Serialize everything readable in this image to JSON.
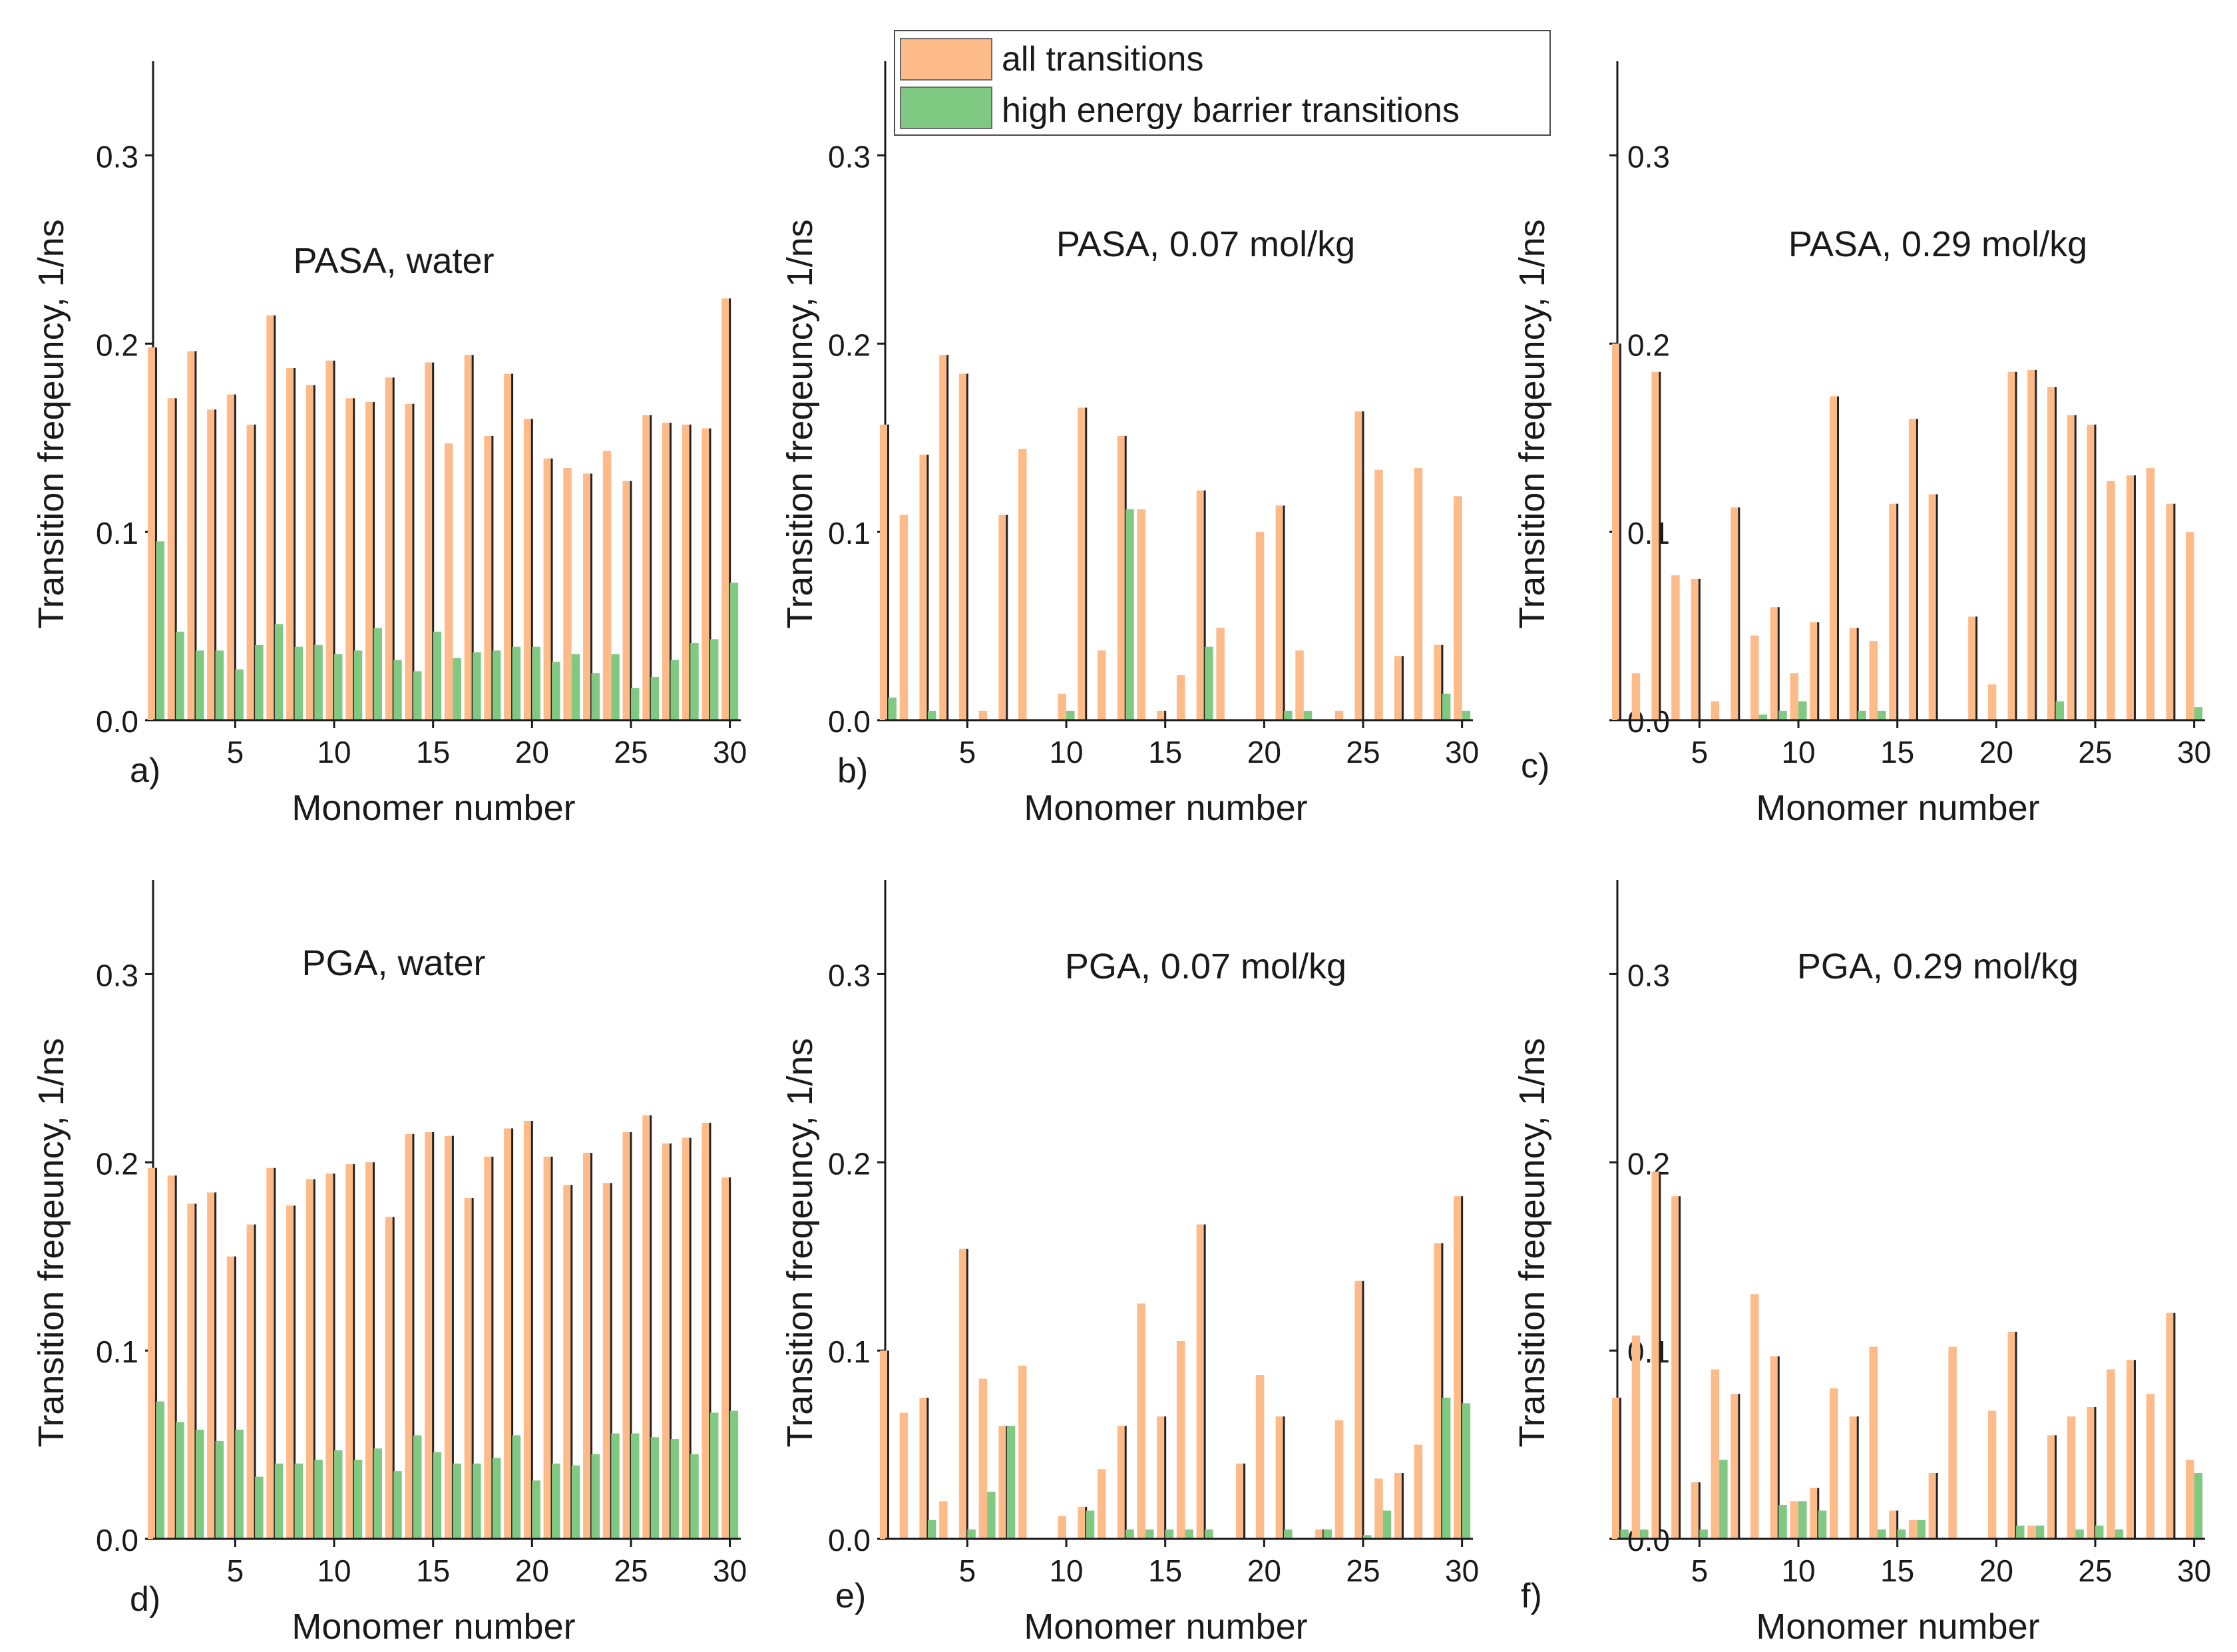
{
  "legend": {
    "items": [
      {
        "label": "all transitions",
        "color": "#FDBB8A"
      },
      {
        "label": "high energy barrier transitions",
        "color": "#80C983"
      }
    ]
  },
  "chart_data": [
    {
      "type": "bar",
      "panel_label": "a)",
      "title": "PASA, water",
      "xlabel": "Monomer number",
      "ylabel": "Transition freqeuncy, 1/ns",
      "ylim": [
        0,
        0.35
      ],
      "yticks": [
        "0.0",
        "0.1",
        "0.2",
        "0.3"
      ],
      "xticks": [
        "5",
        "10",
        "15",
        "20",
        "25",
        "30"
      ],
      "categories": [
        1,
        2,
        3,
        4,
        5,
        6,
        7,
        8,
        9,
        10,
        11,
        12,
        13,
        14,
        15,
        16,
        17,
        18,
        19,
        20,
        21,
        22,
        23,
        24,
        25,
        26,
        27,
        28,
        29,
        30
      ],
      "series": [
        {
          "name": "all transitions",
          "values": [
            0.198,
            0.171,
            0.196,
            0.165,
            0.173,
            0.157,
            0.215,
            0.187,
            0.178,
            0.191,
            0.171,
            0.169,
            0.182,
            0.168,
            0.19,
            0.147,
            0.194,
            0.151,
            0.184,
            0.16,
            0.139,
            0.134,
            0.131,
            0.143,
            0.127,
            0.162,
            0.158,
            0.157,
            0.155,
            0.224
          ]
        },
        {
          "name": "high energy barrier transitions",
          "values": [
            0.095,
            0.047,
            0.037,
            0.037,
            0.027,
            0.04,
            0.051,
            0.039,
            0.04,
            0.035,
            0.037,
            0.049,
            0.032,
            0.026,
            0.047,
            0.033,
            0.036,
            0.037,
            0.039,
            0.039,
            0.031,
            0.035,
            0.025,
            0.035,
            0.017,
            0.023,
            0.032,
            0.041,
            0.043,
            0.073
          ]
        }
      ]
    },
    {
      "type": "bar",
      "panel_label": "b)",
      "title": "PASA, 0.07 mol/kg",
      "xlabel": "Monomer number",
      "ylabel": "Transition freqeuncy, 1/ns",
      "ylim": [
        0,
        0.35
      ],
      "yticks": [
        "0.0",
        "0.1",
        "0.2",
        "0.3"
      ],
      "xticks": [
        "5",
        "10",
        "15",
        "20",
        "25",
        "30"
      ],
      "categories": [
        1,
        2,
        3,
        4,
        5,
        6,
        7,
        8,
        9,
        10,
        11,
        12,
        13,
        14,
        15,
        16,
        17,
        18,
        19,
        20,
        21,
        22,
        23,
        24,
        25,
        26,
        27,
        28,
        29,
        30
      ],
      "series": [
        {
          "name": "all transitions",
          "values": [
            0.157,
            0.109,
            0.141,
            0.194,
            0.184,
            0.005,
            0.109,
            0.144,
            0,
            0.014,
            0.166,
            0.037,
            0.151,
            0.112,
            0.005,
            0.024,
            0.122,
            0.049,
            0,
            0.1,
            0.114,
            0.037,
            0,
            0.005,
            0.164,
            0.133,
            0.034,
            0.134,
            0.04,
            0.119
          ]
        },
        {
          "name": "high energy barrier transitions",
          "values": [
            0.012,
            0,
            0.005,
            0,
            0,
            0,
            0,
            0,
            0,
            0.005,
            0,
            0,
            0.112,
            0,
            0,
            0,
            0.039,
            0,
            0,
            0,
            0.005,
            0.005,
            0,
            0,
            0,
            0,
            0,
            0,
            0.014,
            0.005
          ]
        }
      ]
    },
    {
      "type": "bar",
      "panel_label": "c)",
      "title": "PASA, 0.29 mol/kg",
      "xlabel": "Monomer number",
      "ylabel": "Transition freqeuncy, 1/ns",
      "ylim": [
        0,
        0.35
      ],
      "yticks": [
        "0.0",
        "0.1",
        "0.2",
        "0.3"
      ],
      "xticks": [
        "5",
        "10",
        "15",
        "20",
        "25",
        "30"
      ],
      "categories": [
        1,
        2,
        3,
        4,
        5,
        6,
        7,
        8,
        9,
        10,
        11,
        12,
        13,
        14,
        15,
        16,
        17,
        18,
        19,
        20,
        21,
        22,
        23,
        24,
        25,
        26,
        27,
        28,
        29,
        30
      ],
      "series": [
        {
          "name": "all transitions",
          "values": [
            0.2,
            0.025,
            0.185,
            0.077,
            0.075,
            0.01,
            0.113,
            0.045,
            0.06,
            0.025,
            0.052,
            0.172,
            0.049,
            0.042,
            0.115,
            0.16,
            0.12,
            0,
            0.055,
            0.019,
            0.185,
            0.186,
            0.177,
            0.162,
            0.157,
            0.127,
            0.13,
            0.134,
            0.115,
            0.1
          ]
        },
        {
          "name": "high energy barrier transitions",
          "values": [
            0,
            0,
            0,
            0,
            0,
            0,
            0,
            0.003,
            0.005,
            0.01,
            0,
            0,
            0.005,
            0.005,
            0,
            0,
            0,
            0,
            0,
            0,
            0,
            0,
            0.01,
            0,
            0,
            0,
            0,
            0,
            0,
            0.007
          ]
        }
      ]
    },
    {
      "type": "bar",
      "panel_label": "d)",
      "title": "PGA, water",
      "xlabel": "Monomer number",
      "ylabel": "Transition freqeuncy, 1/ns",
      "ylim": [
        0,
        0.35
      ],
      "yticks": [
        "0.0",
        "0.1",
        "0.2",
        "0.3"
      ],
      "xticks": [
        "5",
        "10",
        "15",
        "20",
        "25",
        "30"
      ],
      "categories": [
        1,
        2,
        3,
        4,
        5,
        6,
        7,
        8,
        9,
        10,
        11,
        12,
        13,
        14,
        15,
        16,
        17,
        18,
        19,
        20,
        21,
        22,
        23,
        24,
        25,
        26,
        27,
        28,
        29,
        30
      ],
      "series": [
        {
          "name": "all transitions",
          "values": [
            0.197,
            0.193,
            0.178,
            0.184,
            0.15,
            0.167,
            0.197,
            0.177,
            0.191,
            0.194,
            0.199,
            0.2,
            0.171,
            0.215,
            0.216,
            0.214,
            0.181,
            0.203,
            0.218,
            0.222,
            0.203,
            0.188,
            0.205,
            0.189,
            0.216,
            0.225,
            0.21,
            0.213,
            0.221,
            0.192
          ]
        },
        {
          "name": "high energy barrier transitions",
          "values": [
            0.073,
            0.062,
            0.058,
            0.052,
            0.058,
            0.033,
            0.04,
            0.04,
            0.042,
            0.047,
            0.042,
            0.048,
            0.036,
            0.055,
            0.046,
            0.04,
            0.04,
            0.043,
            0.055,
            0.031,
            0.04,
            0.039,
            0.045,
            0.056,
            0.056,
            0.054,
            0.053,
            0.045,
            0.067,
            0.068
          ]
        }
      ]
    },
    {
      "type": "bar",
      "panel_label": "e)",
      "title": "PGA, 0.07 mol/kg",
      "xlabel": "Monomer number",
      "ylabel": "Transition freqeuncy, 1/ns",
      "ylim": [
        0,
        0.35
      ],
      "yticks": [
        "0.0",
        "0.1",
        "0.2",
        "0.3"
      ],
      "xticks": [
        "5",
        "10",
        "15",
        "20",
        "25",
        "30"
      ],
      "categories": [
        1,
        2,
        3,
        4,
        5,
        6,
        7,
        8,
        9,
        10,
        11,
        12,
        13,
        14,
        15,
        16,
        17,
        18,
        19,
        20,
        21,
        22,
        23,
        24,
        25,
        26,
        27,
        28,
        29,
        30
      ],
      "series": [
        {
          "name": "all transitions",
          "values": [
            0.1,
            0.067,
            0.075,
            0.02,
            0.154,
            0.085,
            0.06,
            0.092,
            0,
            0.012,
            0.017,
            0.037,
            0.06,
            0.125,
            0.065,
            0.105,
            0.167,
            0,
            0.04,
            0.087,
            0.065,
            0,
            0.005,
            0.063,
            0.137,
            0.032,
            0.035,
            0.05,
            0.157,
            0.182
          ]
        },
        {
          "name": "high energy barrier transitions",
          "values": [
            0,
            0,
            0.01,
            0,
            0.005,
            0.025,
            0.06,
            0,
            0,
            0,
            0.015,
            0,
            0.005,
            0.005,
            0.005,
            0.005,
            0.005,
            0,
            0,
            0,
            0.005,
            0,
            0.005,
            0,
            0.002,
            0.015,
            0,
            0,
            0.075,
            0.072
          ]
        }
      ]
    },
    {
      "type": "bar",
      "panel_label": "f)",
      "title": "PGA, 0.29 mol/kg",
      "xlabel": "Monomer number",
      "ylabel": "Transition freqeuncy, 1/ns",
      "ylim": [
        0,
        0.35
      ],
      "yticks": [
        "0.0",
        "0.1",
        "0.2",
        "0.3"
      ],
      "xticks": [
        "5",
        "10",
        "15",
        "20",
        "25",
        "30"
      ],
      "categories": [
        1,
        2,
        3,
        4,
        5,
        6,
        7,
        8,
        9,
        10,
        11,
        12,
        13,
        14,
        15,
        16,
        17,
        18,
        19,
        20,
        21,
        22,
        23,
        24,
        25,
        26,
        27,
        28,
        29,
        30
      ],
      "series": [
        {
          "name": "all transitions",
          "values": [
            0.075,
            0.108,
            0.195,
            0.182,
            0.03,
            0.09,
            0.077,
            0.13,
            0.097,
            0.02,
            0.027,
            0.08,
            0.065,
            0.102,
            0.015,
            0.01,
            0.035,
            0.102,
            0,
            0.068,
            0.11,
            0.007,
            0.055,
            0.065,
            0.07,
            0.09,
            0.095,
            0.077,
            0.12,
            0.042
          ]
        },
        {
          "name": "high energy barrier transitions",
          "values": [
            0.005,
            0.005,
            0,
            0,
            0.005,
            0.042,
            0,
            0,
            0.018,
            0.02,
            0.015,
            0,
            0,
            0.005,
            0.005,
            0.01,
            0,
            0,
            0,
            0,
            0.007,
            0.007,
            0,
            0.005,
            0.007,
            0.005,
            0,
            0,
            0,
            0.035
          ]
        }
      ]
    }
  ]
}
